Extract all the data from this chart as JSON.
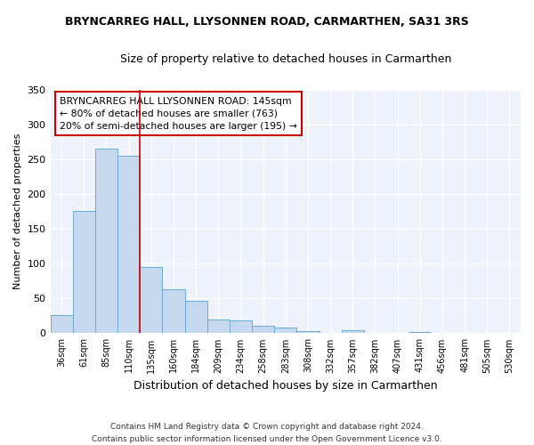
{
  "title": "BRYNCARREG HALL, LLYSONNEN ROAD, CARMARTHEN, SA31 3RS",
  "subtitle": "Size of property relative to detached houses in Carmarthen",
  "xlabel": "Distribution of detached houses by size in Carmarthen",
  "ylabel": "Number of detached properties",
  "bar_color": "#c5d8ee",
  "bar_edge_color": "#6aabd6",
  "bg_color": "#eef2fa",
  "grid_color": "#ffffff",
  "annotation_line_color": "#cc0000",
  "annotation_box_edge": "#cc0000",
  "categories": [
    "36sqm",
    "61sqm",
    "85sqm",
    "110sqm",
    "135sqm",
    "160sqm",
    "184sqm",
    "209sqm",
    "234sqm",
    "258sqm",
    "283sqm",
    "308sqm",
    "332sqm",
    "357sqm",
    "382sqm",
    "407sqm",
    "431sqm",
    "456sqm",
    "481sqm",
    "505sqm",
    "530sqm"
  ],
  "values": [
    26,
    175,
    265,
    255,
    95,
    63,
    47,
    20,
    19,
    11,
    8,
    3,
    1,
    5,
    1,
    0,
    2,
    0,
    1,
    0,
    0
  ],
  "ylim": [
    0,
    350
  ],
  "yticks": [
    0,
    50,
    100,
    150,
    200,
    250,
    300,
    350
  ],
  "property_line_x": 3.5,
  "annotation_line1": "BRYNCARREG HALL LLYSONNEN ROAD: 145sqm",
  "annotation_line2": "← 80% of detached houses are smaller (763)",
  "annotation_line3": "20% of semi-detached houses are larger (195) →",
  "footnote_line1": "Contains HM Land Registry data © Crown copyright and database right 2024.",
  "footnote_line2": "Contains public sector information licensed under the Open Government Licence v3.0."
}
